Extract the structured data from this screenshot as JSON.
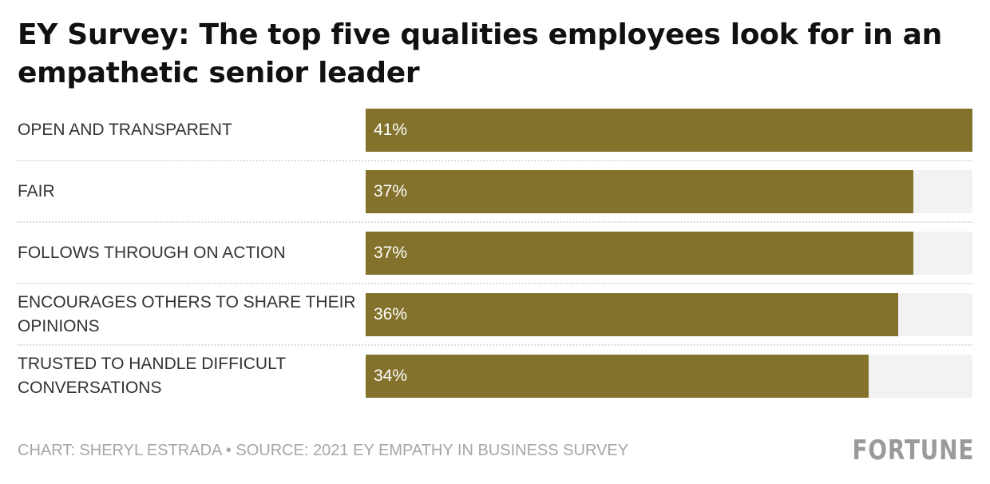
{
  "chart_data": {
    "type": "bar",
    "orientation": "horizontal",
    "title": "EY Survey: The top five qualities employees look for in an empathetic senior leader",
    "categories": [
      "OPEN AND TRANSPARENT",
      "FAIR",
      "FOLLOWS THROUGH ON ACTION",
      "ENCOURAGES OTHERS TO SHARE THEIR OPINIONS",
      "TRUSTED TO HANDLE DIFFICULT CONVERSATIONS"
    ],
    "values": [
      41,
      37,
      37,
      36,
      34
    ],
    "value_labels": [
      "41%",
      "37%",
      "37%",
      "36%",
      "34%"
    ],
    "xlim": [
      0,
      41
    ],
    "xlabel": "",
    "ylabel": "",
    "grid": false,
    "legend": "none",
    "colors": {
      "bar": "#83722b",
      "track": "#f2f2f2"
    }
  },
  "footer": {
    "source": "CHART: SHERYL ESTRADA • SOURCE: 2021 EY EMPATHY IN BUSINESS SURVEY",
    "logo": "FORTUNE"
  }
}
